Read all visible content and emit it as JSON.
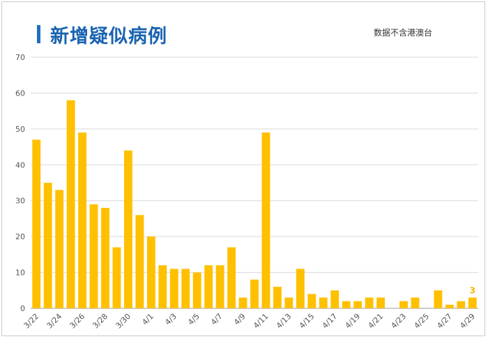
{
  "header": {
    "title": "新增疑似病例",
    "note": "数据不含港澳台"
  },
  "colors": {
    "bar": "#FFC000",
    "title": "#1A63B0",
    "grid": "#D9D9D9",
    "label": "#F4B400"
  },
  "chart_data": {
    "type": "bar",
    "title": "新增疑似病例",
    "categories": [
      "3/22",
      "3/23",
      "3/24",
      "3/25",
      "3/26",
      "3/27",
      "3/28",
      "3/29",
      "3/30",
      "3/31",
      "4/1",
      "4/2",
      "4/3",
      "4/4",
      "4/5",
      "4/6",
      "4/7",
      "4/8",
      "4/9",
      "4/10",
      "4/11",
      "4/12",
      "4/13",
      "4/14",
      "4/15",
      "4/16",
      "4/17",
      "4/18",
      "4/19",
      "4/20",
      "4/21",
      "4/22",
      "4/23",
      "4/24",
      "4/25",
      "4/26",
      "4/27",
      "4/28",
      "4/29"
    ],
    "tick_labels": [
      "3/22",
      "",
      "3/24",
      "",
      "3/26",
      "",
      "3/28",
      "",
      "3/30",
      "",
      "4/1",
      "",
      "4/3",
      "",
      "4/5",
      "",
      "4/7",
      "",
      "4/9",
      "",
      "4/11",
      "",
      "4/13",
      "",
      "4/15",
      "",
      "4/17",
      "",
      "4/19",
      "",
      "4/21",
      "",
      "4/23",
      "",
      "4/25",
      "",
      "4/27",
      "",
      "4/29"
    ],
    "values": [
      47,
      35,
      33,
      58,
      49,
      29,
      28,
      17,
      44,
      26,
      20,
      12,
      11,
      11,
      10,
      12,
      12,
      17,
      3,
      8,
      49,
      6,
      3,
      11,
      4,
      3,
      5,
      2,
      2,
      3,
      3,
      0,
      2,
      3,
      0,
      5,
      1,
      2,
      3
    ],
    "data_labels": [
      {
        "index": 38,
        "text": "3"
      }
    ],
    "ylim": [
      0,
      70
    ],
    "yticks": [
      0,
      10,
      20,
      30,
      40,
      50,
      60,
      70
    ],
    "grid": true,
    "legend": "none"
  }
}
